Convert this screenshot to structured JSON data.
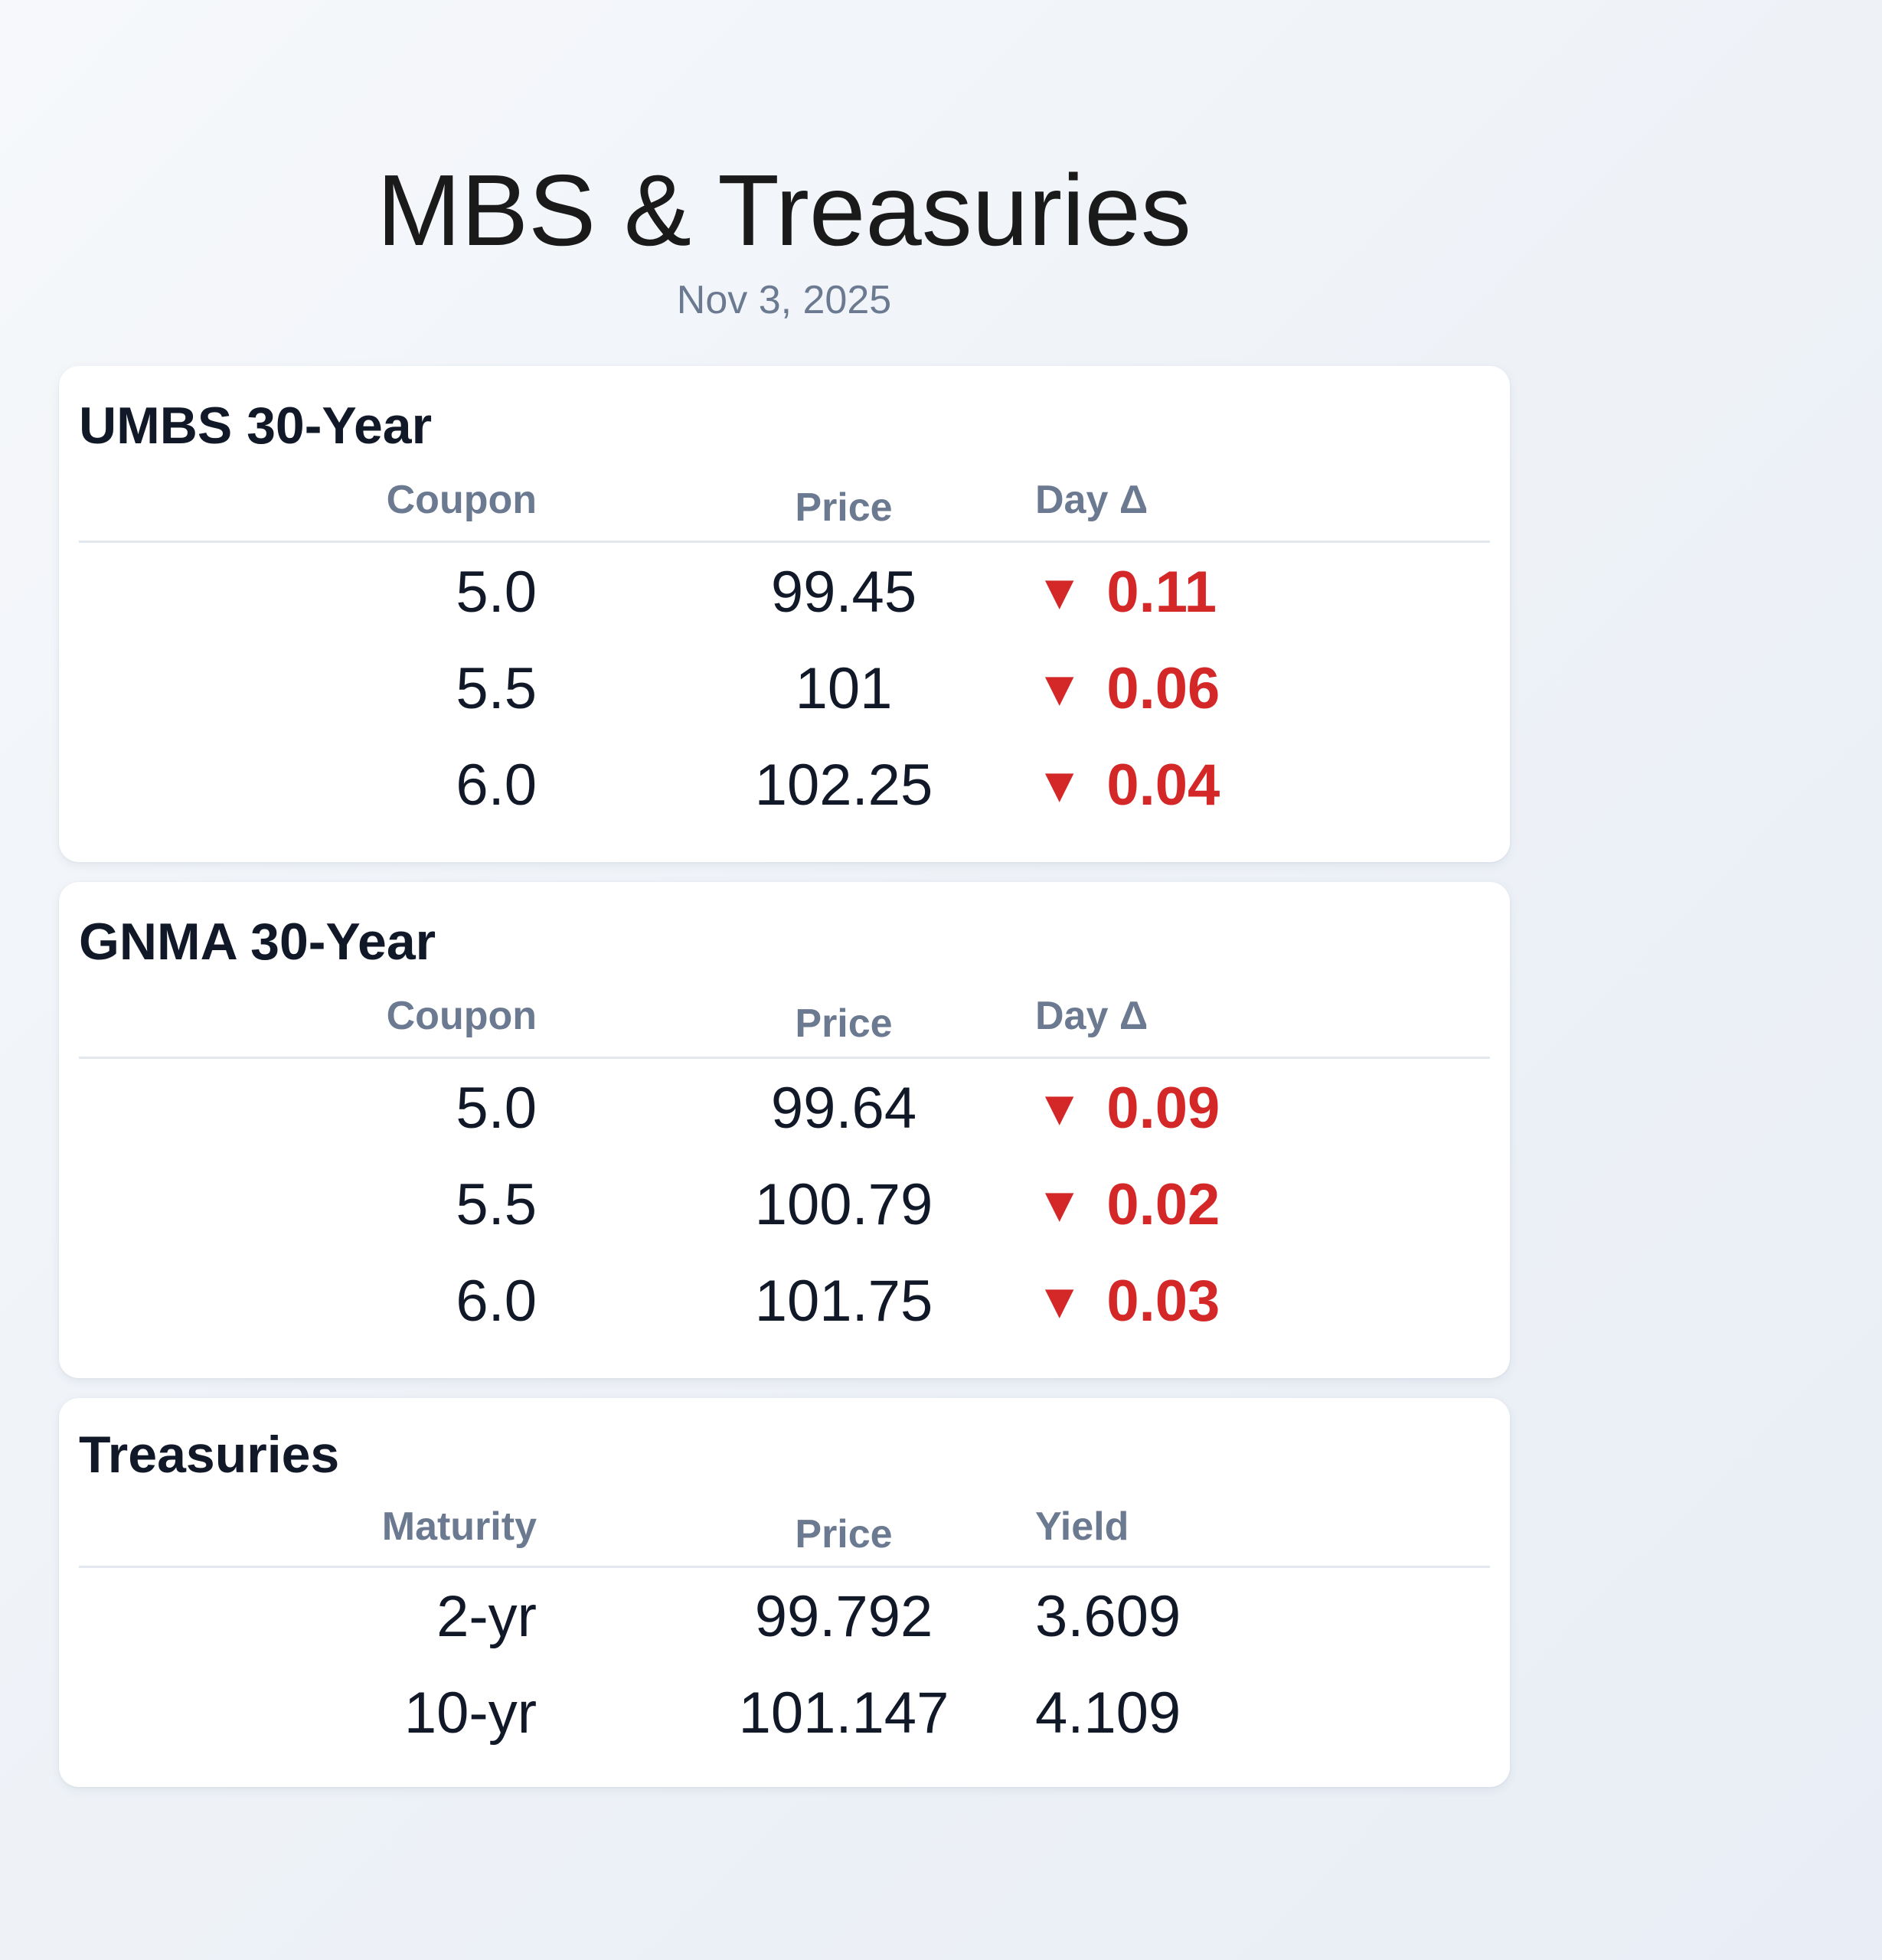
{
  "header": {
    "title": "MBS & Treasuries",
    "date": "Nov 3, 2025"
  },
  "colors": {
    "down": "#d42828",
    "header_text": "#6b7a90",
    "card_bg": "#ffffff"
  },
  "icons": {
    "down_arrow": "▼"
  },
  "cards": [
    {
      "title": "UMBS 30-Year",
      "columns": [
        "Coupon",
        "Price",
        "Day Δ"
      ],
      "rows": [
        {
          "coupon": "5.0",
          "price": "99.45",
          "direction": "down",
          "arrow": "▼",
          "change": "0.11"
        },
        {
          "coupon": "5.5",
          "price": "101",
          "direction": "down",
          "arrow": "▼",
          "change": "0.06"
        },
        {
          "coupon": "6.0",
          "price": "102.25",
          "direction": "down",
          "arrow": "▼",
          "change": "0.04"
        }
      ]
    },
    {
      "title": "GNMA 30-Year",
      "columns": [
        "Coupon",
        "Price",
        "Day Δ"
      ],
      "rows": [
        {
          "coupon": "5.0",
          "price": "99.64",
          "direction": "down",
          "arrow": "▼",
          "change": "0.09"
        },
        {
          "coupon": "5.5",
          "price": "100.79",
          "direction": "down",
          "arrow": "▼",
          "change": "0.02"
        },
        {
          "coupon": "6.0",
          "price": "101.75",
          "direction": "down",
          "arrow": "▼",
          "change": "0.03"
        }
      ]
    },
    {
      "title": "Treasuries",
      "columns": [
        "Maturity",
        "Price",
        "Yield"
      ],
      "rows": [
        {
          "maturity": "2-yr",
          "price": "99.792",
          "yield": "3.609"
        },
        {
          "maturity": "10-yr",
          "price": "101.147",
          "yield": "4.109"
        }
      ]
    }
  ]
}
